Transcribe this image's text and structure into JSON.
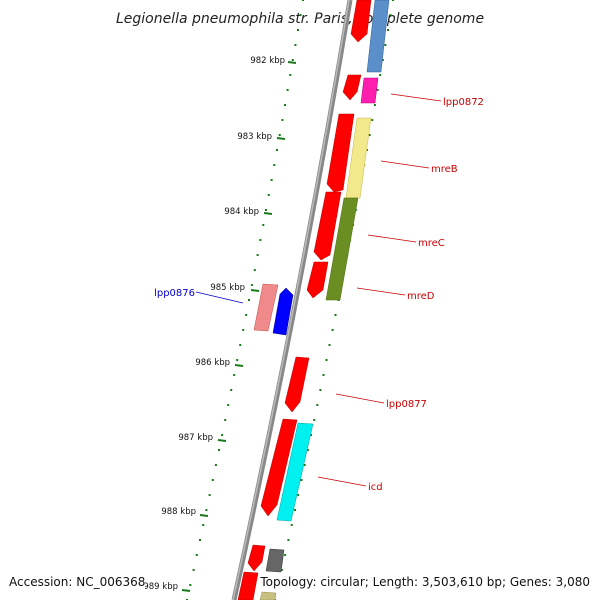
{
  "title": "Legionella pneumophila str. Paris, complete genome",
  "footer": {
    "accession": "Accession: NC_006368",
    "topology": "Topology: circular; Length: 3,503,610 bp; Genes: 3,080"
  },
  "kbp_labels": [
    "982 kbp",
    "983 kbp",
    "984 kbp",
    "985 kbp",
    "986 kbp",
    "987 kbp",
    "988 kbp",
    "989 kbp"
  ],
  "genes": [
    {
      "name": "lpp0872",
      "color": "#cc0000"
    },
    {
      "name": "mreB",
      "color": "#cc0000"
    },
    {
      "name": "mreC",
      "color": "#cc0000"
    },
    {
      "name": "mreD",
      "color": "#cc0000"
    },
    {
      "name": "lpp0876",
      "color": "#0000cc"
    },
    {
      "name": "lpp0877",
      "color": "#cc0000"
    },
    {
      "name": "icd",
      "color": "#cc0000"
    }
  ],
  "colors": {
    "backbone": "#888888",
    "tick": "#1a7a1a",
    "forward_cds": "#ff0000",
    "reverse_cds": "#0000ff"
  }
}
